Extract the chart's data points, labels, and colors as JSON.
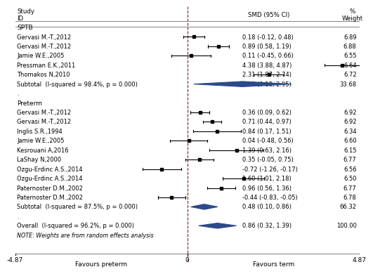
{
  "x_min": -4.87,
  "x_max": 4.87,
  "axis_ticks": [
    -4.87,
    0,
    4.87
  ],
  "xlabel_left": "Favours preterm",
  "xlabel_right": "Favours term",
  "groups": [
    {
      "name": "SPTB",
      "studies": [
        {
          "label": "Gervasi M.-T.,2012",
          "smd": 0.18,
          "ci_low": -0.12,
          "ci_high": 0.48,
          "weight": "6.89",
          "ci_str": "0.18 (-0.12, 0.48)"
        },
        {
          "label": "Gervasi M.-T.,2012",
          "smd": 0.89,
          "ci_low": 0.58,
          "ci_high": 1.19,
          "weight": "6.88",
          "ci_str": "0.89 (0.58, 1.19)"
        },
        {
          "label": "Jamie W.E.,2005",
          "smd": 0.11,
          "ci_low": -0.45,
          "ci_high": 0.66,
          "weight": "6.55",
          "ci_str": "0.11 (-0.45, 0.66)"
        },
        {
          "label": "Pressman E.K.,2011",
          "smd": 4.38,
          "ci_low": 3.88,
          "ci_high": 4.87,
          "weight": "6.64",
          "ci_str": "4.38 (3.88, 4.87)"
        },
        {
          "label": "Thomakos N,2010",
          "smd": 2.31,
          "ci_low": 1.87,
          "ci_high": 2.74,
          "weight": "6.72",
          "ci_str": "2.31 (1.87, 2.74)"
        }
      ],
      "subtotal": {
        "label": "Subtotal  (I-squared = 98.4%, p = 0.000)",
        "smd": 1.57,
        "ci_low": 0.18,
        "ci_high": 2.95,
        "weight": "33.68",
        "ci_str": "1.57 (0.18, 2.95)"
      }
    },
    {
      "name": "Preterm",
      "studies": [
        {
          "label": "Gervasi M.-T.,2012",
          "smd": 0.36,
          "ci_low": 0.09,
          "ci_high": 0.62,
          "weight": "6.92",
          "ci_str": "0.36 (0.09, 0.62)"
        },
        {
          "label": "Gervasi M.-T.,2012",
          "smd": 0.71,
          "ci_low": 0.44,
          "ci_high": 0.97,
          "weight": "6.92",
          "ci_str": "0.71 (0.44, 0.97)"
        },
        {
          "label": "Inglis S.R.,1994",
          "smd": 0.84,
          "ci_low": 0.17,
          "ci_high": 1.51,
          "weight": "6.34",
          "ci_str": "0.84 (0.17, 1.51)"
        },
        {
          "label": "Jamie W.E.,2005",
          "smd": 0.04,
          "ci_low": -0.48,
          "ci_high": 0.56,
          "weight": "6.60",
          "ci_str": "0.04 (-0.48, 0.56)"
        },
        {
          "label": "Kesrouani A,2016",
          "smd": 1.39,
          "ci_low": 0.63,
          "ci_high": 2.16,
          "weight": "6.15",
          "ci_str": "1.39 (0.63, 2.16)"
        },
        {
          "label": "LaShay N,2000",
          "smd": 0.35,
          "ci_low": -0.05,
          "ci_high": 0.75,
          "weight": "6.77",
          "ci_str": "0.35 (-0.05, 0.75)"
        },
        {
          "label": "Ozgu-Erdinc A.S.,2014",
          "smd": -0.72,
          "ci_low": -1.26,
          "ci_high": -0.17,
          "weight": "6.56",
          "ci_str": "-0.72 (-1.26, -0.17)"
        },
        {
          "label": "Ozgu-Erdinc A.S.,2014",
          "smd": 1.6,
          "ci_low": 1.01,
          "ci_high": 2.18,
          "weight": "6.50",
          "ci_str": "1.60 (1.01, 2.18)"
        },
        {
          "label": "Paternoster D.M.,2002",
          "smd": 0.96,
          "ci_low": 0.56,
          "ci_high": 1.36,
          "weight": "6.77",
          "ci_str": "0.96 (0.56, 1.36)"
        },
        {
          "label": "Paternoster D.M.,2002",
          "smd": -0.44,
          "ci_low": -0.83,
          "ci_high": -0.05,
          "weight": "6.78",
          "ci_str": "-0.44 (-0.83, -0.05)"
        }
      ],
      "subtotal": {
        "label": "Subtotal  (I-squared = 87.5%, p = 0.000)",
        "smd": 0.48,
        "ci_low": 0.1,
        "ci_high": 0.86,
        "weight": "66.32",
        "ci_str": "0.48 (0.10, 0.86)"
      }
    }
  ],
  "overall": {
    "label": "Overall  (I-squared = 96.2%, p = 0.000)",
    "smd": 0.86,
    "ci_low": 0.32,
    "ci_high": 1.39,
    "weight": "100.00",
    "ci_str": "0.86 (0.32, 1.39)"
  },
  "note": "NOTE: Weights are from random effects analysis",
  "diamond_color": "#2B4A8A",
  "ci_line_color": "#000000",
  "dashed_line_color": "#8B1A1A",
  "background_color": "#ffffff",
  "text_color": "#000000",
  "gray_line_color": "#808080"
}
